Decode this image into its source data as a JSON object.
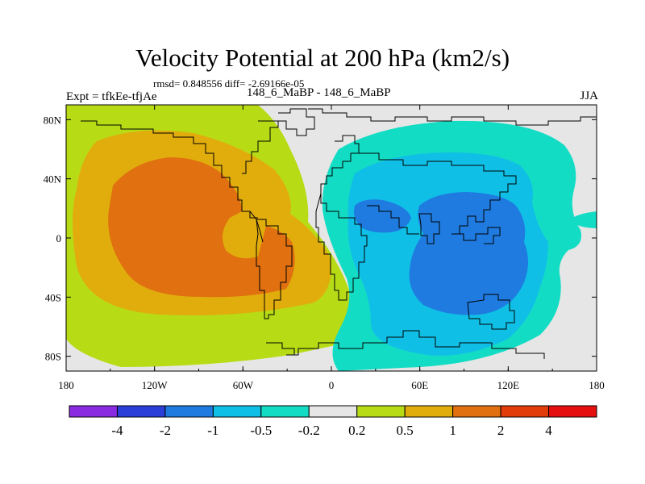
{
  "header": {
    "title": "Velocity Potential at 200 hPa (km2/s)",
    "stats": "rmsd= 0.848556 diff= -2.69166e-05",
    "experiment": "Expt = tfkEe-tfjAe",
    "period": "148_6_MaBP - 148_6_MaBP",
    "season": "JJA"
  },
  "axes": {
    "x_ticks": [
      "180",
      "120W",
      "60W",
      "0",
      "60E",
      "120E",
      "180"
    ],
    "y_ticks": [
      "80N",
      "40N",
      "0",
      "40S",
      "80S"
    ]
  },
  "colorbar": {
    "labels": [
      "-4",
      "-2",
      "-1",
      "-0.5",
      "-0.2",
      "0.2",
      "0.5",
      "1",
      "2",
      "4"
    ],
    "colors": [
      "#8a2be2",
      "#2c3ed8",
      "#1f7be0",
      "#10bfe6",
      "#13dcc4",
      "#e6e6e6",
      "#b7dc16",
      "#e1ad0c",
      "#e07010",
      "#e23c0a",
      "#e60f0f"
    ]
  },
  "chart_data": {
    "type": "heatmap",
    "title": "Velocity Potential at 200 hPa (km2/s)",
    "variable": "velocity potential difference",
    "units": "km2/s",
    "levels": [
      -4,
      -2,
      -1,
      -0.5,
      -0.2,
      0.2,
      0.5,
      1,
      2,
      4
    ],
    "xlim": [
      -180,
      180
    ],
    "ylim": [
      -90,
      90
    ],
    "features": [
      {
        "name": "positive center",
        "lon": -120,
        "lat": 10,
        "max_level": "1 to 2"
      },
      {
        "name": "negative center",
        "lon": 90,
        "lat": -10,
        "min_level": "-1 to -2"
      },
      {
        "name": "secondary negative center",
        "lon": 40,
        "lat": 20,
        "min_level": "-1 to -2"
      }
    ]
  }
}
